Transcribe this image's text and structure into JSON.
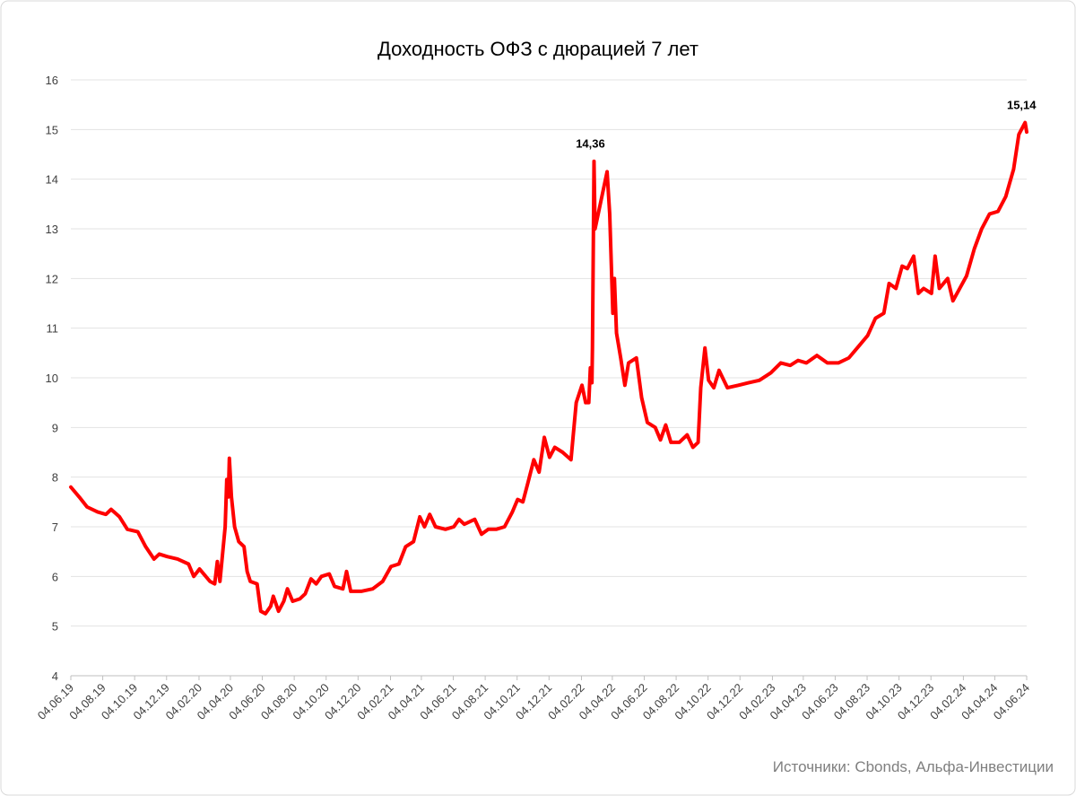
{
  "chart_data": {
    "type": "line",
    "title": "Доходность ОФЗ с дюрацией 7 лет",
    "source": "Источники: Cbonds, Альфа-Инвестиции",
    "color": "#ff0000",
    "grid": true,
    "ylim": [
      4,
      16
    ],
    "yticks": [
      4,
      5,
      6,
      7,
      8,
      9,
      10,
      11,
      12,
      13,
      14,
      15,
      16
    ],
    "xlim": [
      "2019-06-04",
      "2024-06-04"
    ],
    "xticks": [
      {
        "value": "2019-06-04",
        "label": "04.06.19"
      },
      {
        "value": "2019-08-04",
        "label": "04.08.19"
      },
      {
        "value": "2019-10-04",
        "label": "04.10.19"
      },
      {
        "value": "2019-12-04",
        "label": "04.12.19"
      },
      {
        "value": "2020-02-04",
        "label": "04.02.20"
      },
      {
        "value": "2020-04-04",
        "label": "04.04.20"
      },
      {
        "value": "2020-06-04",
        "label": "04.06.20"
      },
      {
        "value": "2020-08-04",
        "label": "04.08.20"
      },
      {
        "value": "2020-10-04",
        "label": "04.10.20"
      },
      {
        "value": "2020-12-04",
        "label": "04.12.20"
      },
      {
        "value": "2021-02-04",
        "label": "04.02.21"
      },
      {
        "value": "2021-04-04",
        "label": "04.04.21"
      },
      {
        "value": "2021-06-04",
        "label": "04.06.21"
      },
      {
        "value": "2021-08-04",
        "label": "04.08.21"
      },
      {
        "value": "2021-10-04",
        "label": "04.10.21"
      },
      {
        "value": "2021-12-04",
        "label": "04.12.21"
      },
      {
        "value": "2022-02-04",
        "label": "04.02.22"
      },
      {
        "value": "2022-04-04",
        "label": "04.04.22"
      },
      {
        "value": "2022-06-04",
        "label": "04.06.22"
      },
      {
        "value": "2022-08-04",
        "label": "04.08.22"
      },
      {
        "value": "2022-10-04",
        "label": "04.10.22"
      },
      {
        "value": "2022-12-04",
        "label": "04.12.22"
      },
      {
        "value": "2023-02-04",
        "label": "04.02.23"
      },
      {
        "value": "2023-04-04",
        "label": "04.04.23"
      },
      {
        "value": "2023-06-04",
        "label": "04.06.23"
      },
      {
        "value": "2023-08-04",
        "label": "04.08.23"
      },
      {
        "value": "2023-10-04",
        "label": "04.10.23"
      },
      {
        "value": "2023-12-04",
        "label": "04.12.23"
      },
      {
        "value": "2024-02-04",
        "label": "04.02.24"
      },
      {
        "value": "2024-04-04",
        "label": "04.04.24"
      },
      {
        "value": "2024-06-04",
        "label": "04.06.24"
      }
    ],
    "x": [
      "2019-06-04",
      "2019-06-20",
      "2019-07-05",
      "2019-07-25",
      "2019-08-10",
      "2019-08-20",
      "2019-09-05",
      "2019-09-20",
      "2019-10-10",
      "2019-10-25",
      "2019-11-10",
      "2019-11-20",
      "2019-12-05",
      "2019-12-25",
      "2020-01-15",
      "2020-01-25",
      "2020-02-05",
      "2020-02-25",
      "2020-03-05",
      "2020-03-10",
      "2020-03-15",
      "2020-03-25",
      "2020-03-28",
      "2020-03-31",
      "2020-04-02",
      "2020-04-06",
      "2020-04-12",
      "2020-04-20",
      "2020-04-30",
      "2020-05-06",
      "2020-05-12",
      "2020-05-25",
      "2020-06-01",
      "2020-06-10",
      "2020-06-20",
      "2020-06-25",
      "2020-07-05",
      "2020-07-15",
      "2020-07-22",
      "2020-08-01",
      "2020-08-15",
      "2020-08-25",
      "2020-09-05",
      "2020-09-15",
      "2020-09-25",
      "2020-10-10",
      "2020-10-20",
      "2020-11-05",
      "2020-11-12",
      "2020-11-20",
      "2020-12-10",
      "2021-01-01",
      "2021-01-20",
      "2021-02-05",
      "2021-02-20",
      "2021-03-05",
      "2021-03-20",
      "2021-04-01",
      "2021-04-10",
      "2021-04-20",
      "2021-05-01",
      "2021-05-20",
      "2021-06-05",
      "2021-06-15",
      "2021-06-25",
      "2021-07-15",
      "2021-07-28",
      "2021-08-10",
      "2021-08-25",
      "2021-09-10",
      "2021-09-25",
      "2021-10-05",
      "2021-10-15",
      "2021-10-25",
      "2021-11-05",
      "2021-11-15",
      "2021-11-25",
      "2021-12-05",
      "2021-12-15",
      "2021-12-30",
      "2022-01-15",
      "2022-01-25",
      "2022-02-05",
      "2022-02-12",
      "2022-02-18",
      "2022-02-21",
      "2022-02-24",
      "2022-02-25",
      "2022-02-28",
      "2022-03-02",
      "2022-03-25",
      "2022-03-30",
      "2022-04-05",
      "2022-04-08",
      "2022-04-12",
      "2022-04-20",
      "2022-04-28",
      "2022-05-05",
      "2022-05-20",
      "2022-05-30",
      "2022-06-10",
      "2022-06-25",
      "2022-07-05",
      "2022-07-15",
      "2022-07-25",
      "2022-08-10",
      "2022-08-25",
      "2022-09-05",
      "2022-09-15",
      "2022-09-20",
      "2022-09-28",
      "2022-10-05",
      "2022-10-15",
      "2022-10-25",
      "2022-11-10",
      "2022-12-01",
      "2022-12-20",
      "2023-01-10",
      "2023-02-01",
      "2023-02-20",
      "2023-03-10",
      "2023-03-25",
      "2023-04-10",
      "2023-04-30",
      "2023-05-20",
      "2023-06-10",
      "2023-06-30",
      "2023-07-20",
      "2023-08-05",
      "2023-08-20",
      "2023-09-05",
      "2023-09-15",
      "2023-09-28",
      "2023-10-10",
      "2023-10-20",
      "2023-11-01",
      "2023-11-10",
      "2023-11-20",
      "2023-12-05",
      "2023-12-12",
      "2023-12-20",
      "2024-01-05",
      "2024-01-15",
      "2024-01-28",
      "2024-02-10",
      "2024-02-25",
      "2024-03-10",
      "2024-03-25",
      "2024-04-10",
      "2024-04-25",
      "2024-05-10",
      "2024-05-20",
      "2024-06-01",
      "2024-06-04"
    ],
    "values": [
      7.8,
      7.6,
      7.4,
      7.3,
      7.25,
      7.35,
      7.2,
      6.95,
      6.9,
      6.6,
      6.35,
      6.45,
      6.4,
      6.35,
      6.25,
      6.0,
      6.15,
      5.9,
      5.85,
      6.3,
      5.9,
      7.0,
      7.95,
      7.6,
      8.38,
      7.6,
      7.0,
      6.7,
      6.6,
      6.1,
      5.9,
      5.85,
      5.3,
      5.25,
      5.4,
      5.6,
      5.3,
      5.5,
      5.75,
      5.5,
      5.55,
      5.65,
      5.95,
      5.85,
      6.0,
      6.05,
      5.8,
      5.75,
      6.1,
      5.7,
      5.7,
      5.75,
      5.9,
      6.2,
      6.25,
      6.6,
      6.7,
      7.2,
      7.0,
      7.25,
      7.0,
      6.95,
      7.0,
      7.15,
      7.05,
      7.15,
      6.85,
      6.95,
      6.95,
      7.0,
      7.3,
      7.55,
      7.5,
      7.9,
      8.35,
      8.1,
      8.8,
      8.4,
      8.6,
      8.5,
      8.35,
      9.5,
      9.85,
      9.5,
      9.5,
      10.2,
      9.9,
      10.6,
      14.36,
      13.0,
      14.15,
      13.3,
      11.3,
      12.0,
      10.9,
      10.4,
      9.85,
      10.3,
      10.4,
      9.6,
      9.1,
      9.0,
      8.75,
      9.05,
      8.7,
      8.7,
      8.85,
      8.6,
      8.7,
      9.8,
      10.6,
      9.95,
      9.8,
      10.15,
      9.8,
      9.85,
      9.9,
      9.95,
      10.1,
      10.3,
      10.25,
      10.35,
      10.3,
      10.45,
      10.3,
      10.3,
      10.4,
      10.65,
      10.85,
      11.2,
      11.3,
      11.9,
      11.8,
      12.25,
      12.2,
      12.45,
      11.7,
      11.8,
      11.7,
      12.45,
      11.8,
      12.0,
      11.55,
      11.8,
      12.05,
      12.6,
      13.0,
      13.3,
      13.35,
      13.65,
      14.2,
      14.9,
      15.14,
      14.95
    ],
    "value_labels": [
      null,
      null,
      null,
      null,
      null,
      null,
      null,
      null,
      null,
      null,
      null,
      null,
      null,
      null,
      null,
      null,
      null,
      null,
      null,
      null,
      null,
      null,
      null,
      null,
      null,
      null,
      null,
      null,
      null,
      null,
      null,
      null,
      null,
      null,
      null,
      null,
      null,
      null,
      null,
      null,
      null,
      null,
      null,
      null,
      null,
      null,
      null,
      null,
      null,
      null,
      null,
      null,
      null,
      null,
      null,
      null,
      null,
      null,
      null,
      null,
      null,
      null,
      null,
      null,
      null,
      null,
      null,
      null,
      null,
      null,
      null,
      null,
      null,
      null,
      null,
      null,
      null,
      null,
      null,
      null,
      null,
      null,
      null,
      null,
      null,
      null,
      null,
      null,
      "14,36",
      null,
      null,
      null,
      null,
      null,
      null,
      null,
      null,
      null,
      null,
      null,
      null,
      null,
      null,
      null,
      null,
      null,
      null,
      null,
      null,
      null,
      null,
      null,
      null,
      null,
      null,
      null,
      null,
      null,
      null,
      null,
      null,
      null,
      null,
      null,
      null,
      null,
      null,
      null,
      null,
      null,
      null,
      null,
      null,
      null,
      null,
      null,
      null,
      null,
      null,
      null,
      null,
      null,
      null,
      null,
      null,
      null,
      null,
      null,
      null,
      null,
      null,
      null,
      "15,14",
      null
    ]
  }
}
